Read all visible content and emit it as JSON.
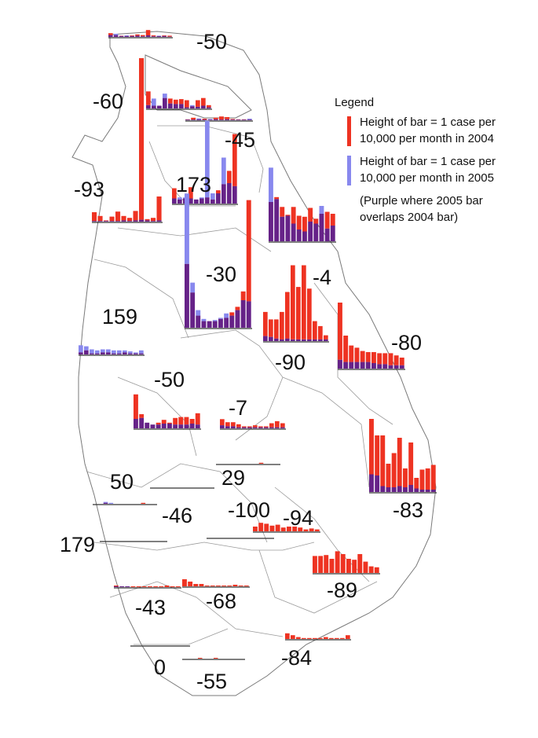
{
  "colors": {
    "y2004": "#ee3322",
    "y2005": "#8888ee",
    "overlap": "#662288",
    "outline": "#7a7a7a",
    "baseline": "#333333",
    "label": "#111111"
  },
  "legend": {
    "title": "Legend",
    "row_2004_line1": "Height of bar = 1 case per",
    "row_2004_line2": "10,000 per month in 2004",
    "row_2005_line1": "Height of bar = 1 case per",
    "row_2005_line2": "10,000 per month in 2005",
    "note_line1": "(Purple where 2005 bar",
    "note_line2": "overlaps 2004 bar)"
  },
  "districts": [
    {
      "id": "jaffna-north",
      "label": "-50",
      "v2004": [
        1.2,
        0.6,
        0.4,
        0.3,
        0.5,
        0.8,
        0.6,
        2.2,
        0.5,
        0.3,
        0.5,
        0.4
      ],
      "v2005": [
        0.6,
        1.0,
        0.3,
        0.5,
        0.3,
        0.4,
        0.2,
        0.5,
        0.2,
        0.4,
        0.3,
        0.1
      ]
    },
    {
      "id": "kilinochchi",
      "label": "-60",
      "v2004": [
        3.1,
        0.5,
        0.5,
        1.9,
        1.8,
        1.6,
        1.7,
        1.5,
        0.4,
        1.5,
        1.9,
        0.6
      ],
      "v2005": [
        0.6,
        1.8,
        0.5,
        2.7,
        0.9,
        0.8,
        0.8,
        0.2,
        0.6,
        0.3,
        0.5,
        0.2
      ]
    },
    {
      "id": "jaffna-islands",
      "label": "-45",
      "v2004": [
        0.3,
        0.8,
        0.3,
        0.5,
        0.2,
        0.8,
        1.2,
        1.0,
        0.4,
        0.3,
        0.3,
        0.2
      ],
      "v2005": [
        0.2,
        0.2,
        0.6,
        0.2,
        0.4,
        0.3,
        0.2,
        0.3,
        0.2,
        0.2,
        0.2,
        0.5
      ]
    },
    {
      "id": "mannar",
      "label": "-93",
      "v2004": [
        1.5,
        0.9,
        0.2,
        0.8,
        1.6,
        0.9,
        0.6,
        1.7,
        26,
        0.4,
        0.6,
        4.0
      ],
      "v2005": [
        0.1,
        0.1,
        0.1,
        0.1,
        0.1,
        0.2,
        0.1,
        0.2,
        0.3,
        0.2,
        0.1,
        0.2
      ]
    },
    {
      "id": "vavuniya",
      "label": "173",
      "v2004": [
        1.5,
        0.4,
        0.5,
        1.6,
        0.4,
        0.5,
        0.6,
        0.4,
        1.3,
        1.9,
        3.2,
        6.8
      ],
      "v2005": [
        0.5,
        0.6,
        0.6,
        0.5,
        0.4,
        0.6,
        8.1,
        1.0,
        1.0,
        4.5,
        2.0,
        1.7
      ]
    },
    {
      "id": "mullaitivu",
      "label": "-4",
      "v2004": [
        4.0,
        4.5,
        3.5,
        2.7,
        3.5,
        2.6,
        2.5,
        3.4,
        2.3,
        2.8,
        3.0,
        2.8
      ],
      "v2005": [
        7.5,
        4.3,
        2.5,
        2.6,
        1.8,
        1.2,
        1.0,
        2.0,
        1.8,
        3.6,
        1.3,
        1.6
      ]
    },
    {
      "id": "anuradhapura",
      "label": "-30",
      "v2004": [
        5.8,
        3.2,
        1.1,
        0.6,
        0.6,
        0.6,
        0.8,
        0.9,
        1.4,
        1.9,
        3.3,
        11.6
      ],
      "v2005": [
        12.2,
        4.1,
        1.6,
        0.8,
        0.6,
        0.7,
        0.9,
        1.3,
        1.1,
        1.6,
        2.5,
        2.4
      ]
    },
    {
      "id": "puttalam",
      "label": "159",
      "v2004": [
        0.2,
        0.4,
        0.1,
        0.1,
        0.2,
        0.2,
        0.1,
        0.1,
        0.2,
        0.1,
        0.1,
        0.1
      ],
      "v2005": [
        0.9,
        0.8,
        0.5,
        0.4,
        0.5,
        0.5,
        0.4,
        0.4,
        0.4,
        0.3,
        0.2,
        0.4
      ]
    },
    {
      "id": "trincomalee",
      "label": "-90",
      "v2004": [
        3.5,
        2.6,
        2.6,
        3.5,
        5.9,
        9.1,
        6.5,
        9.1,
        6.3,
        2.4,
        1.8,
        0.7
      ],
      "v2005": [
        0.6,
        0.5,
        0.3,
        0.2,
        0.3,
        0.2,
        0.2,
        0.2,
        0.2,
        0.2,
        0.2,
        0.2
      ]
    },
    {
      "id": "batticaloa-north",
      "label": "-80",
      "v2004": [
        6.0,
        3.0,
        2.1,
        1.9,
        1.6,
        1.5,
        1.5,
        1.4,
        1.4,
        1.4,
        1.2,
        1.0
      ],
      "v2005": [
        0.8,
        0.6,
        0.6,
        0.6,
        0.6,
        0.6,
        0.5,
        0.4,
        0.4,
        0.3,
        0.3,
        0.3
      ]
    },
    {
      "id": "kurunegala",
      "label": "-50",
      "v2004": [
        3.6,
        1.5,
        0.6,
        0.4,
        0.6,
        0.9,
        0.6,
        1.1,
        1.2,
        1.2,
        1.0,
        1.6
      ],
      "v2005": [
        1.0,
        1.1,
        0.6,
        0.4,
        0.4,
        0.5,
        0.5,
        0.4,
        0.4,
        0.4,
        0.5,
        0.4
      ]
    },
    {
      "id": "matale",
      "label": "-7",
      "v2004": [
        0.9,
        0.6,
        0.6,
        0.4,
        0.2,
        0.2,
        0.3,
        0.2,
        0.2,
        0.5,
        0.7,
        0.5
      ],
      "v2005": [
        0.3,
        0.2,
        0.2,
        0.1,
        0.1,
        0.1,
        0.1,
        0.1,
        0.1,
        0.1,
        0.1,
        0.1
      ]
    },
    {
      "id": "ampara",
      "label": "-83",
      "v2004": [
        6.2,
        4.8,
        4.8,
        2.4,
        3.3,
        4.6,
        2.0,
        4.2,
        1.2,
        1.9,
        2.0,
        2.3
      ],
      "v2005": [
        1.5,
        1.4,
        0.5,
        0.4,
        0.4,
        0.5,
        0.4,
        0.6,
        0.3,
        0.2,
        0.2,
        0.2
      ]
    },
    {
      "id": "kandy",
      "label": "29",
      "v2004": [
        0,
        0,
        0,
        0,
        0,
        0,
        0,
        0,
        0.1,
        0,
        0,
        0
      ],
      "v2005": [
        0,
        0,
        0,
        0,
        0,
        0,
        0,
        0,
        0,
        0,
        0,
        0
      ]
    },
    {
      "id": "gampaha",
      "label": "50",
      "v2004": [
        0,
        0,
        0.1,
        0,
        0,
        0,
        0,
        0,
        0,
        0.1,
        0,
        0
      ],
      "v2005": [
        0,
        0,
        0.2,
        0.1,
        0,
        0,
        0,
        0,
        0,
        0,
        0,
        0
      ]
    },
    {
      "id": "kegalle",
      "label": "-46",
      "v2004": [
        0,
        0,
        0,
        0,
        0,
        0,
        0,
        0,
        0,
        0,
        0,
        0
      ],
      "v2005": [
        0,
        0,
        0,
        0,
        0,
        0,
        0,
        0,
        0,
        0,
        0,
        0
      ]
    },
    {
      "id": "nuwara-eliya",
      "label": "-100",
      "v2004": [
        0,
        0,
        0,
        0,
        0,
        0,
        0,
        0,
        0,
        0,
        0,
        0
      ],
      "v2005": [
        0,
        0,
        0,
        0,
        0,
        0,
        0,
        0,
        0,
        0,
        0,
        0
      ]
    },
    {
      "id": "badulla",
      "label": "-94",
      "v2004": [
        0.5,
        0.9,
        0.8,
        0.6,
        0.7,
        0.4,
        0.5,
        0.5,
        0.4,
        0.2,
        0.3,
        0.2
      ],
      "v2005": [
        0,
        0,
        0,
        0,
        0,
        0,
        0,
        0,
        0,
        0,
        0,
        0
      ]
    },
    {
      "id": "colombo",
      "label": "179",
      "v2004": [
        0,
        0,
        0,
        0,
        0,
        0,
        0,
        0,
        0,
        0,
        0,
        0
      ],
      "v2005": [
        0,
        0,
        0,
        0,
        0,
        0,
        0,
        0,
        0,
        0,
        0,
        0
      ]
    },
    {
      "id": "moneragala",
      "label": "-89",
      "v2004": [
        1.8,
        1.8,
        1.9,
        1.5,
        2.3,
        2.0,
        1.5,
        1.4,
        2.0,
        1.2,
        0.7,
        0.6
      ],
      "v2005": [
        0,
        0,
        0,
        0,
        0,
        0,
        0,
        0,
        0,
        0,
        0,
        0
      ]
    },
    {
      "id": "kalutara",
      "label": "-43",
      "v2004": [
        0.2,
        0.1,
        0.1,
        0.1,
        0.1,
        0.1,
        0.1,
        0.1,
        0.1,
        0.2,
        0.1,
        0.1
      ],
      "v2005": [
        0.1,
        0.1,
        0.1,
        0,
        0,
        0,
        0,
        0,
        0,
        0,
        0,
        0
      ]
    },
    {
      "id": "ratnapura",
      "label": "-68",
      "v2004": [
        0.9,
        0.6,
        0.3,
        0.3,
        0.1,
        0.1,
        0.1,
        0.1,
        0.1,
        0.2,
        0.1,
        0.1
      ],
      "v2005": [
        0,
        0,
        0,
        0,
        0,
        0,
        0,
        0,
        0,
        0,
        0,
        0
      ]
    },
    {
      "id": "galle",
      "label": "0",
      "v2004": [
        0,
        0,
        0,
        0,
        0,
        0,
        0,
        0,
        0,
        0,
        0,
        0
      ],
      "v2005": [
        0,
        0,
        0,
        0,
        0,
        0,
        0,
        0,
        0,
        0,
        0,
        0
      ]
    },
    {
      "id": "matara",
      "label": "-55",
      "v2004": [
        0,
        0,
        0,
        0.1,
        0,
        0,
        0.1,
        0,
        0,
        0,
        0,
        0
      ],
      "v2005": [
        0,
        0,
        0,
        0,
        0,
        0,
        0,
        0,
        0,
        0,
        0,
        0
      ]
    },
    {
      "id": "hambantota",
      "label": "-84",
      "v2004": [
        0.6,
        0.4,
        0.2,
        0.1,
        0.1,
        0.1,
        0.1,
        0.2,
        0.1,
        0.1,
        0.1,
        0.4
      ],
      "v2005": [
        0,
        0,
        0,
        0,
        0,
        0,
        0,
        0,
        0,
        0,
        0,
        0
      ]
    }
  ]
}
